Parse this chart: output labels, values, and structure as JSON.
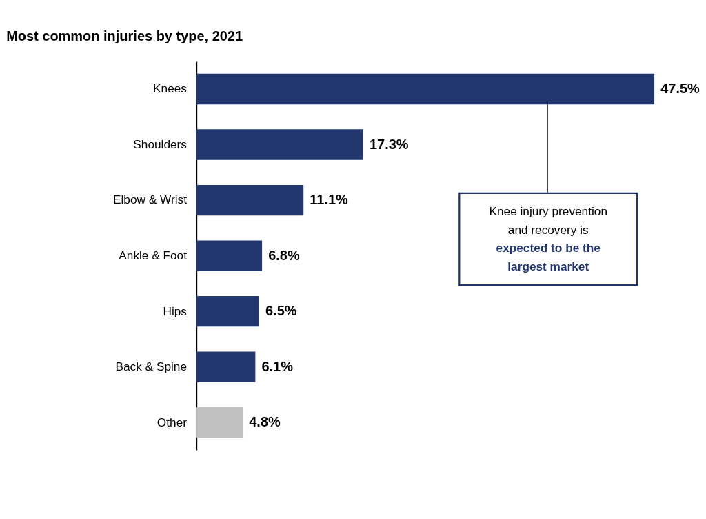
{
  "chart_data": {
    "type": "bar",
    "orientation": "horizontal",
    "title": "Most common injuries by type, 2021",
    "categories": [
      "Knees",
      "Shoulders",
      "Elbow & Wrist",
      "Ankle & Foot",
      "Hips",
      "Back & Spine",
      "Other"
    ],
    "values": [
      47.5,
      17.3,
      11.1,
      6.8,
      6.5,
      6.1,
      4.8
    ],
    "colors": [
      "#22366e",
      "#22366e",
      "#22366e",
      "#22366e",
      "#22366e",
      "#22366e",
      "#c0c0c0"
    ],
    "annotations": [
      "Knee injury prevention and recovery is",
      "expected to be the largest market"
    ],
    "value_labels": [
      "47.5%",
      "17.3%",
      "11.1%",
      "6.8%",
      "6.5%",
      "6.1%",
      "4.8%"
    ]
  }
}
